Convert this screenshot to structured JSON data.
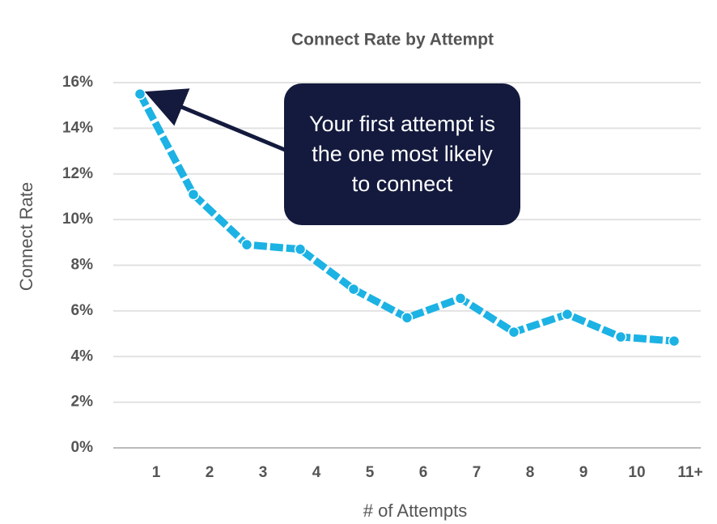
{
  "chart_data": {
    "type": "line",
    "title": "Connect Rate by Attempt",
    "x_label": "# of Attempts",
    "y_label": "Connect Rate",
    "categories": [
      "1",
      "2",
      "3",
      "4",
      "5",
      "6",
      "7",
      "8",
      "9",
      "10",
      "11+"
    ],
    "series": [
      {
        "name": "Connect Rate",
        "color": "#1cb2e4",
        "values": [
          15.5,
          11.1,
          8.9,
          8.7,
          6.95,
          5.7,
          6.55,
          5.07,
          5.85,
          4.86,
          4.68
        ]
      }
    ],
    "ylim": [
      0,
      16
    ],
    "yticks": [
      {
        "value": 0,
        "label": "0%"
      },
      {
        "value": 2,
        "label": "2%"
      },
      {
        "value": 4,
        "label": "4%"
      },
      {
        "value": 6,
        "label": "6%"
      },
      {
        "value": 8,
        "label": "8%"
      },
      {
        "value": 10,
        "label": "10%"
      },
      {
        "value": 12,
        "label": "12%"
      },
      {
        "value": 14,
        "label": "14%"
      },
      {
        "value": 16,
        "label": "16%"
      }
    ],
    "grid": true,
    "annotation": "Your first attempt is the one most likely to connect"
  }
}
